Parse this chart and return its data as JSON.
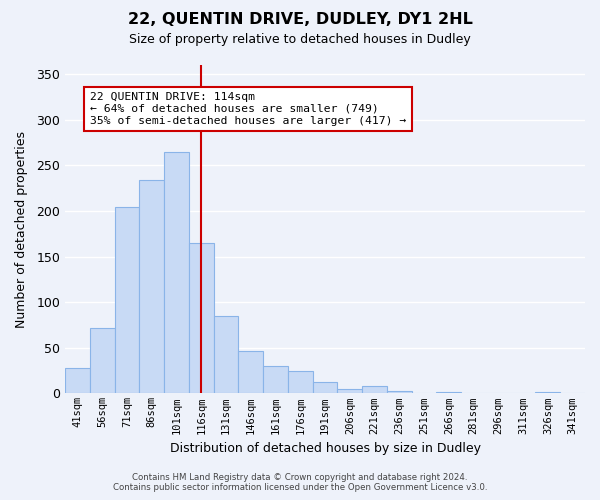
{
  "title": "22, QUENTIN DRIVE, DUDLEY, DY1 2HL",
  "subtitle": "Size of property relative to detached houses in Dudley",
  "xlabel": "Distribution of detached houses by size in Dudley",
  "ylabel": "Number of detached properties",
  "bar_labels": [
    "41sqm",
    "56sqm",
    "71sqm",
    "86sqm",
    "101sqm",
    "116sqm",
    "131sqm",
    "146sqm",
    "161sqm",
    "176sqm",
    "191sqm",
    "206sqm",
    "221sqm",
    "236sqm",
    "251sqm",
    "266sqm",
    "281sqm",
    "296sqm",
    "311sqm",
    "326sqm",
    "341sqm"
  ],
  "bar_values": [
    28,
    72,
    204,
    234,
    265,
    165,
    85,
    46,
    30,
    25,
    13,
    5,
    8,
    3,
    0,
    2,
    0,
    0,
    0,
    1,
    0
  ],
  "bar_color": "#c8daf5",
  "bar_edge_color": "#8ab4e8",
  "vline_x": 5.0,
  "vline_color": "#cc0000",
  "ylim": [
    0,
    360
  ],
  "yticks": [
    0,
    50,
    100,
    150,
    200,
    250,
    300,
    350
  ],
  "annotation_title": "22 QUENTIN DRIVE: 114sqm",
  "annotation_line1": "← 64% of detached houses are smaller (749)",
  "annotation_line2": "35% of semi-detached houses are larger (417) →",
  "annotation_box_color": "#ffffff",
  "annotation_box_edge": "#cc0000",
  "footer_line1": "Contains HM Land Registry data © Crown copyright and database right 2024.",
  "footer_line2": "Contains public sector information licensed under the Open Government Licence v3.0.",
  "background_color": "#eef2fa",
  "grid_color": "#ffffff"
}
